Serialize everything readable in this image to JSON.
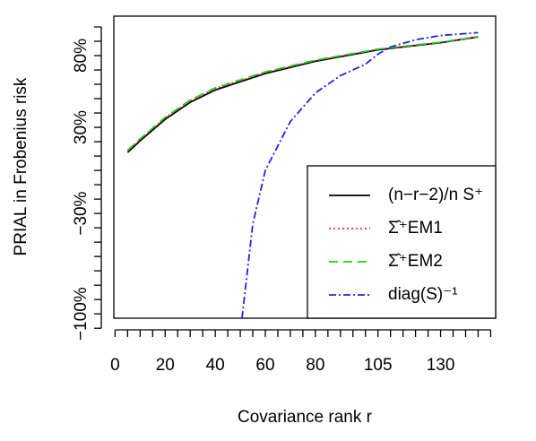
{
  "chart_data": {
    "type": "line",
    "x_label": "Covariance rank r",
    "y_label": "PRIAL in Frobenius risk",
    "xlim": [
      -0.5,
      152
    ],
    "ylim": [
      -103,
      107.5
    ],
    "xticks": [
      0,
      20,
      40,
      60,
      80,
      105,
      130
    ],
    "xminorticks": [
      5,
      10,
      15,
      25,
      30,
      35,
      45,
      50,
      55,
      65,
      70,
      75,
      85,
      90,
      95,
      100,
      110,
      115,
      120,
      125,
      135,
      140,
      145,
      150
    ],
    "yticks": [
      {
        "value": 80,
        "label": "80%"
      },
      {
        "value": 30,
        "label": "30%"
      },
      {
        "value": -30,
        "label": "−30%"
      },
      {
        "value": -100,
        "label": "−100%"
      }
    ],
    "yminorticks": [
      -110,
      -90,
      -80,
      -70,
      -60,
      -50,
      -40,
      -20,
      -10,
      0,
      10,
      20,
      40,
      50,
      60,
      70,
      90,
      100
    ],
    "legend": "bottom-right",
    "series": [
      {
        "name": "(n−r−2)/n S⁺",
        "color": "#000000",
        "dash": "none",
        "x": [
          5,
          10,
          20,
          30,
          40,
          60,
          80,
          105,
          130,
          145
        ],
        "values": [
          12.5,
          20.6,
          35.6,
          47.5,
          56,
          67.5,
          76,
          84,
          89,
          93
        ]
      },
      {
        "name": "Σ̂⁺EM1",
        "color": "#e03030",
        "dash": "2 3",
        "x": [
          5,
          10,
          20,
          30,
          40,
          60,
          80,
          105,
          130,
          145
        ],
        "values": [
          13.5,
          21.6,
          36.6,
          48.5,
          57,
          68.3,
          76.6,
          84.4,
          89.2,
          93.1
        ]
      },
      {
        "name": "Σ̂⁺EM2",
        "color": "#22cc22",
        "dash": "10 6",
        "x": [
          5,
          10,
          20,
          30,
          40,
          60,
          80,
          105,
          130,
          145
        ],
        "values": [
          14,
          22,
          37,
          49,
          57.5,
          68.6,
          76.8,
          84.5,
          89.3,
          93.2
        ]
      },
      {
        "name": "diag(S)⁻¹",
        "color": "#2222dd",
        "dash": "8 3 2 3",
        "x": [
          50.7,
          55,
          60,
          70,
          80,
          90,
          100,
          105,
          110,
          120,
          130,
          145
        ],
        "values": [
          -103,
          -37.5,
          0,
          34,
          54,
          66,
          74,
          81,
          86,
          91,
          94,
          96
        ]
      }
    ]
  }
}
